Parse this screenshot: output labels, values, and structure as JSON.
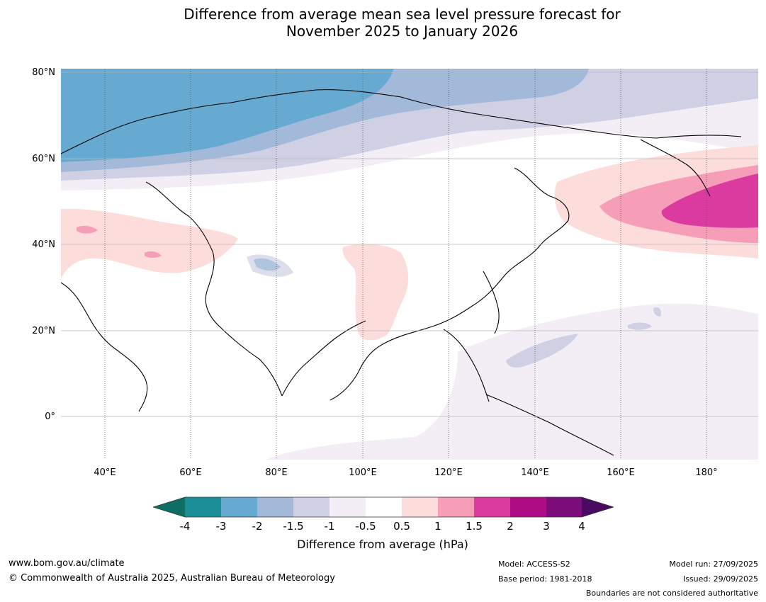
{
  "title_line1": "Difference from average mean sea level pressure forecast for",
  "title_line2": "November 2025 to January 2026",
  "latitude_labels": [
    "80°N",
    "60°N",
    "40°N",
    "20°N",
    "0°"
  ],
  "longitude_labels": [
    "40°E",
    "60°E",
    "80°E",
    "100°E",
    "120°E",
    "140°E",
    "160°E",
    "180°"
  ],
  "colorbar": {
    "ticks": [
      "-4",
      "-3",
      "-2",
      "-1.5",
      "-1",
      "-0.5",
      "0.5",
      "1",
      "1.5",
      "2",
      "3",
      "4"
    ],
    "label": "Difference from average (hPa)",
    "colors": [
      "#0f6e63",
      "#1a8f98",
      "#66aad1",
      "#a3b9da",
      "#cfd0e4",
      "#f3eef6",
      "#ffffff",
      "#fddcdc",
      "#f69db7",
      "#db3a9e",
      "#ad0e86",
      "#7a0d7a",
      "#4a0a60"
    ]
  },
  "footer": {
    "website": "www.bom.gov.au/climate",
    "copyright": "© Commonwealth of Australia 2025, Australian Bureau of Meteorology",
    "model": "Model: ACCESS-S2",
    "base_period": "Base period: 1981-2018",
    "model_run": "Model run: 27/09/2025",
    "issued": "Issued: 29/09/2025",
    "disclaimer": "Boundaries are not considered authoritative"
  }
}
